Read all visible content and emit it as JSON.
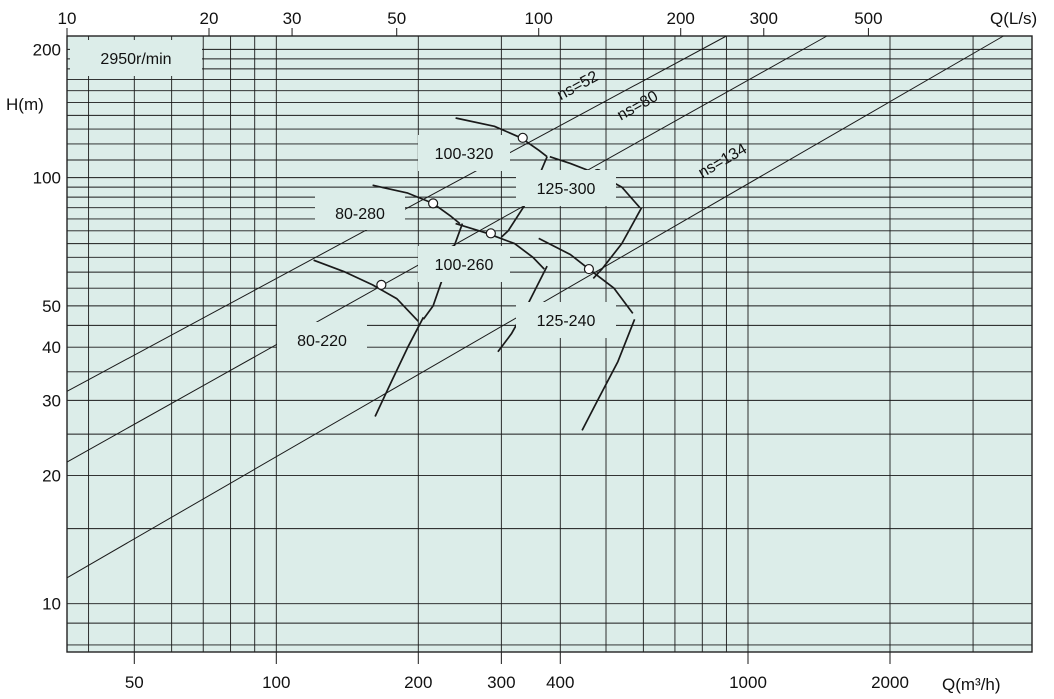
{
  "chart_data": {
    "type": "line",
    "title": "",
    "speed_label": "2950r/min",
    "x_axis_bottom": {
      "label": "Q(m³/h)",
      "scale": "log",
      "range": [
        36,
        4000
      ],
      "ticks": [
        50,
        100,
        200,
        300,
        400,
        1000,
        2000
      ],
      "tick_labels": [
        "50",
        "100",
        "200",
        "300",
        "400",
        "1000",
        "2000"
      ]
    },
    "x_axis_top": {
      "label": "Q(L/s)",
      "scale": "log",
      "ticks": [
        10,
        20,
        30,
        50,
        100,
        200,
        300,
        500
      ],
      "tick_labels": [
        "10",
        "20",
        "30",
        "50",
        "100",
        "200",
        "300",
        "500"
      ]
    },
    "y_axis": {
      "label": "H(m)",
      "scale": "log",
      "range": [
        7.7,
        215
      ],
      "ticks": [
        10,
        20,
        30,
        40,
        50,
        100,
        200
      ],
      "tick_labels": [
        "10",
        "20",
        "30",
        "40",
        "50",
        "100",
        "200"
      ]
    },
    "grid": true,
    "background_color": "#dcede9",
    "line_color": "#1a1a1a",
    "specific_speed_lines": [
      {
        "name": "ns=52",
        "points": [
          [
            36,
            31.5
          ],
          [
            900,
            215
          ]
        ]
      },
      {
        "name": "ns=80",
        "points": [
          [
            36,
            21.5
          ],
          [
            1470,
            215
          ]
        ]
      },
      {
        "name": "ns=134",
        "points": [
          [
            36,
            11.5
          ],
          [
            3480,
            215
          ]
        ]
      }
    ],
    "series": [
      {
        "name": "80-220",
        "head_curve": [
          [
            120,
            64
          ],
          [
            140,
            60
          ],
          [
            160,
            56
          ],
          [
            180,
            52
          ],
          [
            200,
            46
          ]
        ],
        "efficiency_curve": [
          [
            205,
            47
          ],
          [
            190,
            40
          ],
          [
            175,
            33
          ],
          [
            162,
            27.5
          ]
        ],
        "bep": [
          167,
          56
        ]
      },
      {
        "name": "80-280",
        "head_curve": [
          [
            160,
            96
          ],
          [
            190,
            92
          ],
          [
            215,
            87
          ],
          [
            235,
            81
          ],
          [
            245,
            78
          ]
        ],
        "efficiency_curve": [
          [
            248,
            78
          ],
          [
            230,
            62
          ],
          [
            215,
            50
          ],
          [
            205,
            46.5
          ]
        ],
        "bep": [
          215,
          87
        ]
      },
      {
        "name": "100-260",
        "head_curve": [
          [
            240,
            78
          ],
          [
            280,
            74
          ],
          [
            320,
            70
          ],
          [
            350,
            65
          ],
          [
            370,
            61
          ]
        ],
        "efficiency_curve": [
          [
            375,
            62
          ],
          [
            340,
            50
          ],
          [
            315,
            43
          ],
          [
            295,
            39
          ]
        ],
        "bep": [
          285,
          74
        ]
      },
      {
        "name": "100-320",
        "head_curve": [
          [
            240,
            138
          ],
          [
            290,
            132
          ],
          [
            330,
            124
          ],
          [
            360,
            116
          ],
          [
            375,
            112
          ]
        ],
        "efficiency_curve": [
          [
            375,
            112
          ],
          [
            345,
            90
          ],
          [
            310,
            75
          ],
          [
            300,
            72.5
          ]
        ],
        "bep": [
          333,
          124
        ]
      },
      {
        "name": "125-300",
        "head_curve": [
          [
            380,
            112
          ],
          [
            420,
            108
          ],
          [
            480,
            102
          ],
          [
            540,
            95
          ],
          [
            590,
            85
          ]
        ],
        "efficiency_curve": [
          [
            595,
            85
          ],
          [
            540,
            70
          ],
          [
            490,
            61
          ],
          [
            470,
            58
          ]
        ],
        "bep": [
          480,
          102
        ]
      },
      {
        "name": "125-240",
        "head_curve": [
          [
            360,
            72
          ],
          [
            420,
            66
          ],
          [
            460,
            61
          ],
          [
            520,
            55
          ],
          [
            570,
            48
          ]
        ],
        "efficiency_curve": [
          [
            575,
            46.5
          ],
          [
            530,
            37
          ],
          [
            480,
            30
          ],
          [
            445,
            25.5
          ]
        ],
        "bep": [
          460,
          61
        ]
      }
    ],
    "labels": [
      "2950r/min",
      "80-220",
      "80-280",
      "100-260",
      "100-320",
      "125-300",
      "125-240"
    ]
  }
}
